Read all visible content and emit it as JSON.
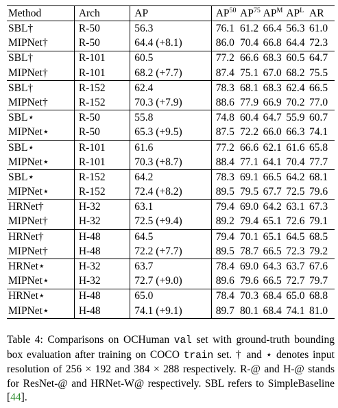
{
  "table": {
    "headers": {
      "method": "Method",
      "arch": "Arch",
      "ap": "AP",
      "ap50_base": "AP",
      "ap50_sup": "50",
      "ap75_base": "AP",
      "ap75_sup": "75",
      "apm_base": "AP",
      "apm_sup": "M",
      "apl_base": "AP",
      "apl_sup": "L",
      "ar": "AR"
    },
    "groups": [
      {
        "rows": [
          {
            "method": "SBL†",
            "arch": "R-50",
            "ap": "56.3",
            "ap_gain": "",
            "ap50": "76.1",
            "ap75": "61.2",
            "apm": "66.4",
            "apl": "56.3",
            "ar": "61.0",
            "bold": []
          },
          {
            "method": "MIPNet†",
            "arch": "R-50",
            "ap": "64.4",
            "ap_gain": " (+8.1)",
            "ap50": "86.0",
            "ap75": "70.4",
            "apm": "66.8",
            "apl": "64.4",
            "ar": "72.3",
            "bold": [
              "ap",
              "ap50",
              "ap75",
              "apm",
              "apl",
              "ar"
            ]
          }
        ]
      },
      {
        "rows": [
          {
            "method": "SBL†",
            "arch": "R-101",
            "ap": "60.5",
            "ap_gain": "",
            "ap50": "77.2",
            "ap75": "66.6",
            "apm": "68.3",
            "apl": "60.5",
            "ar": "64.7",
            "bold": [
              "apm"
            ]
          },
          {
            "method": "MIPNet†",
            "arch": "R-101",
            "ap": "68.2",
            "ap_gain": " (+7.7)",
            "ap50": "87.4",
            "ap75": "75.1",
            "apm": "67.0",
            "apl": "68.2",
            "ar": "75.5",
            "bold": [
              "ap",
              "ap50",
              "ap75",
              "apl",
              "ar"
            ]
          }
        ]
      },
      {
        "rows": [
          {
            "method": "SBL†",
            "arch": "R-152",
            "ap": "62.4",
            "ap_gain": "",
            "ap50": "78.3",
            "ap75": "68.1",
            "apm": "68.3",
            "apl": "62.4",
            "ar": "66.5",
            "bold": [
              "apm"
            ]
          },
          {
            "method": "MIPNet†",
            "arch": "R-152",
            "ap": "70.3",
            "ap_gain": " (+7.9)",
            "ap50": "88.6",
            "ap75": "77.9",
            "apm": "66.9",
            "apl": "70.2",
            "ar": "77.0",
            "bold": [
              "ap",
              "ap50",
              "ap75",
              "apl",
              "ar"
            ]
          }
        ]
      },
      {
        "rows": [
          {
            "method": "SBL⋆",
            "arch": "R-50",
            "ap": "55.8",
            "ap_gain": "",
            "ap50": "74.8",
            "ap75": "60.4",
            "apm": "64.7",
            "apl": "55.9",
            "ar": "60.7",
            "bold": []
          },
          {
            "method": "MIPNet⋆",
            "arch": "R-50",
            "ap": "65.3",
            "ap_gain": " (+9.5)",
            "ap50": "87.5",
            "ap75": "72.2",
            "apm": "66.0",
            "apl": "66.3",
            "ar": "74.1",
            "bold": [
              "ap",
              "ap50",
              "ap75",
              "apm",
              "apl",
              "ar"
            ]
          }
        ]
      },
      {
        "rows": [
          {
            "method": "SBL⋆",
            "arch": "R-101",
            "ap": "61.6",
            "ap_gain": "",
            "ap50": "77.2",
            "ap75": "66.6",
            "apm": "62.1",
            "apl": "61.6",
            "ar": "65.8",
            "bold": []
          },
          {
            "method": "MIPNet⋆",
            "arch": "R-101",
            "ap": "70.3",
            "ap_gain": " (+8.7)",
            "ap50": "88.4",
            "ap75": "77.1",
            "apm": "64.1",
            "apl": "70.4",
            "ar": "77.7",
            "bold": [
              "ap",
              "ap50",
              "ap75",
              "apm",
              "apl",
              "ar"
            ]
          }
        ]
      },
      {
        "rows": [
          {
            "method": "SBL⋆",
            "arch": "R-152",
            "ap": "64.2",
            "ap_gain": "",
            "ap50": "78.3",
            "ap75": "69.1",
            "apm": "66.5",
            "apl": "64.2",
            "ar": "68.1",
            "bold": []
          },
          {
            "method": "MIPNet⋆",
            "arch": "R-152",
            "ap": "72.4",
            "ap_gain": " (+8.2)",
            "ap50": "89.5",
            "ap75": "79.5",
            "apm": "67.7",
            "apl": "72.5",
            "ar": "79.6",
            "bold": [
              "ap",
              "ap50",
              "ap75",
              "apm",
              "apl",
              "ar"
            ]
          }
        ]
      },
      {
        "rows": [
          {
            "method": "HRNet†",
            "arch": "H-32",
            "ap": "63.1",
            "ap_gain": "",
            "ap50": "79.4",
            "ap75": "69.0",
            "apm": "64.2",
            "apl": "63.1",
            "ar": "67.3",
            "bold": []
          },
          {
            "method": "MIPNet†",
            "arch": "H-32",
            "ap": "72.5",
            "ap_gain": " (+9.4)",
            "ap50": "89.2",
            "ap75": "79.4",
            "apm": "65.1",
            "apl": "72.6",
            "ar": "79.1",
            "bold": [
              "ap",
              "ap50",
              "ap75",
              "apm",
              "apl",
              "ar"
            ]
          }
        ]
      },
      {
        "rows": [
          {
            "method": "HRNet†",
            "arch": "H-48",
            "ap": "64.5",
            "ap_gain": "",
            "ap50": "79.4",
            "ap75": "70.1",
            "apm": "65.1",
            "apl": "64.5",
            "ar": "68.5",
            "bold": []
          },
          {
            "method": "MIPNet†",
            "arch": "H-48",
            "ap": "72.2",
            "ap_gain": " (+7.7)",
            "ap50": "89.5",
            "ap75": "78.7",
            "apm": "66.5",
            "apl": "72.3",
            "ar": "79.2",
            "bold": [
              "ap",
              "ap50",
              "ap75",
              "apm",
              "apl",
              "ar"
            ]
          }
        ]
      },
      {
        "rows": [
          {
            "method": "HRNet⋆",
            "arch": "H-32",
            "ap": "63.7",
            "ap_gain": "",
            "ap50": "78.4",
            "ap75": "69.0",
            "apm": "64.3",
            "apl": "63.7",
            "ar": "67.6",
            "bold": []
          },
          {
            "method": "MIPNet⋆",
            "arch": "H-32",
            "ap": "72.7",
            "ap_gain": " (+9.0)",
            "ap50": "89.6",
            "ap75": "79.6",
            "apm": "66.5",
            "apl": "72.7",
            "ar": "79.7",
            "bold": [
              "ap",
              "ap50",
              "ap75",
              "apm",
              "apl",
              "ar"
            ]
          }
        ]
      },
      {
        "rows": [
          {
            "method": "HRNet⋆",
            "arch": "H-48",
            "ap": "65.0",
            "ap_gain": "",
            "ap50": "78.4",
            "ap75": "70.3",
            "apm": "68.4",
            "apl": "65.0",
            "ar": "68.8",
            "bold": [
              "apm"
            ]
          },
          {
            "method": "MIPNet⋆",
            "arch": "H-48",
            "ap": "74.1",
            "ap_gain": " (+9.1)",
            "ap50": "89.7",
            "ap75": "80.1",
            "apm": "68.4",
            "apl": "74.1",
            "ar": "81.0",
            "bold": [
              "ap",
              "ap50",
              "ap75",
              "apm",
              "apl",
              "ar"
            ]
          }
        ]
      }
    ]
  },
  "caption": {
    "p1": "Table 4: Comparisons on OCHuman ",
    "val": "val",
    "p2": " set with ground-truth bounding box evaluation after training on COCO ",
    "train": "train",
    "p3": " set. † and ⋆ denotes input resolution of 256 × 192 and 384 × 288 respectively. R-@ and H-@ stands for ResNet-@ and HRNet-W@ respectively. SBL refers to SimpleBaseline [",
    "ref": "44",
    "p4": "]."
  }
}
